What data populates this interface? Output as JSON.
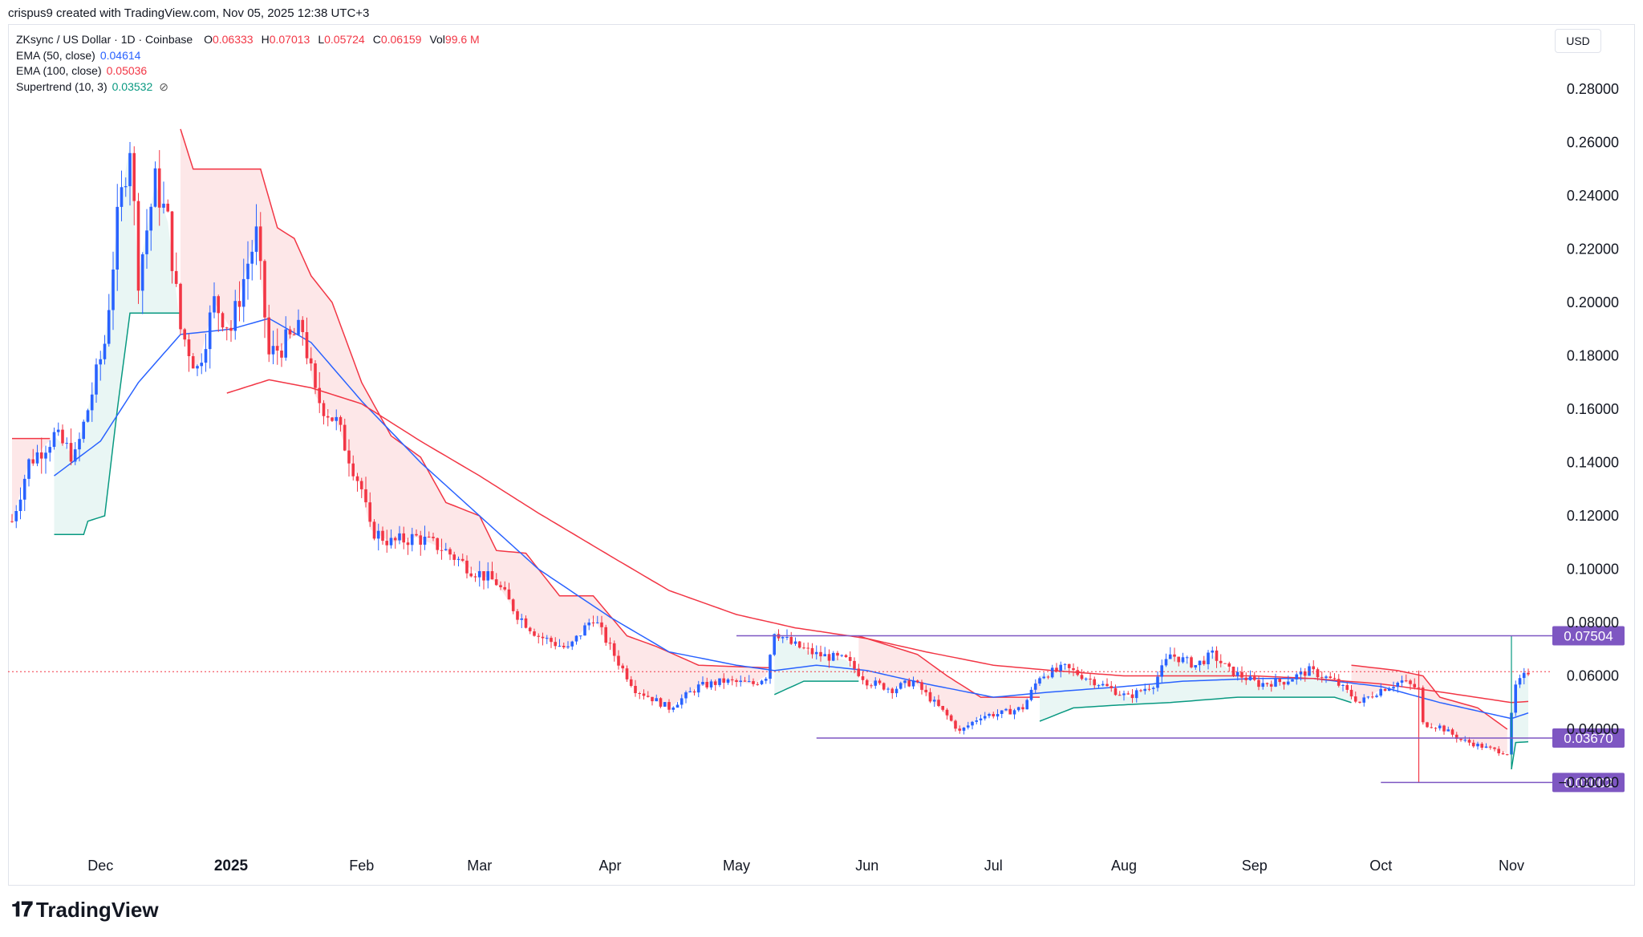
{
  "header": {
    "credit": "crispus9 created with TradingView.com, Nov 05, 2025 12:38 UTC+3"
  },
  "legend": {
    "symbol": "ZKsync / US Dollar · 1D · Coinbase",
    "ohlc": [
      {
        "label": "O",
        "value": "0.06333"
      },
      {
        "label": "H",
        "value": "0.07013"
      },
      {
        "label": "L",
        "value": "0.05724"
      },
      {
        "label": "C",
        "value": "0.06159"
      },
      {
        "label": "Vol",
        "value": "99.6 M"
      }
    ],
    "indicators": [
      {
        "label": "EMA (50, close)",
        "value": "0.04614",
        "color": "#2962ff"
      },
      {
        "label": "EMA (100, close)",
        "value": "0.05036",
        "color": "#f23645"
      },
      {
        "label": "Supertrend (10, 3)",
        "value": "0.03532",
        "color": "#089981"
      }
    ],
    "visibility_icon": "eye-off-icon"
  },
  "currency_badge": "USD",
  "footer": {
    "brand": "TradingView",
    "logo_icon": "tradingview-logo-icon"
  },
  "colors": {
    "up": "#2962ff",
    "down": "#f23645",
    "ema50": "#2962ff",
    "ema100": "#f23645",
    "supertrend_up": "#089981",
    "supertrend_down": "#f23645",
    "level_line": "#7e57c2",
    "level_badge": "#7e57c2",
    "last_price_line": "#f23645"
  },
  "chart_data": {
    "type": "candlestick",
    "title": "ZKsync / US Dollar · 1D · Coinbase",
    "ylim": [
      -0.002,
      0.288
    ],
    "y_ticks": [
      "0.28000",
      "0.26000",
      "0.24000",
      "0.22000",
      "0.20000",
      "0.18000",
      "0.16000",
      "0.14000",
      "0.12000",
      "0.10000",
      "0.08000",
      "0.06000",
      "0.04000",
      "−0.00000"
    ],
    "x_ticks": [
      {
        "label": "Dec",
        "date": "2024-12-01"
      },
      {
        "label": "2025",
        "date": "2025-01-01",
        "bold": true
      },
      {
        "label": "Feb",
        "date": "2025-02-01"
      },
      {
        "label": "Mar",
        "date": "2025-03-01"
      },
      {
        "label": "Apr",
        "date": "2025-04-01"
      },
      {
        "label": "May",
        "date": "2025-05-01"
      },
      {
        "label": "Jun",
        "date": "2025-06-01"
      },
      {
        "label": "Jul",
        "date": "2025-07-01"
      },
      {
        "label": "Aug",
        "date": "2025-08-01"
      },
      {
        "label": "Sep",
        "date": "2025-09-01"
      },
      {
        "label": "Oct",
        "date": "2025-10-01"
      },
      {
        "label": "Nov",
        "date": "2025-11-01"
      }
    ],
    "x_range": [
      "2024-11-10",
      "2025-11-05"
    ],
    "price_keypoints": [
      [
        "2024-11-10",
        0.118
      ],
      [
        "2024-11-14",
        0.14
      ],
      [
        "2024-11-20",
        0.15
      ],
      [
        "2024-11-25",
        0.142
      ],
      [
        "2024-11-28",
        0.16
      ],
      [
        "2024-12-02",
        0.185
      ],
      [
        "2024-12-05",
        0.23
      ],
      [
        "2024-12-08",
        0.26
      ],
      [
        "2024-12-10",
        0.21
      ],
      [
        "2024-12-14",
        0.245
      ],
      [
        "2024-12-17",
        0.23
      ],
      [
        "2024-12-20",
        0.19
      ],
      [
        "2024-12-24",
        0.175
      ],
      [
        "2024-12-28",
        0.2
      ],
      [
        "2025-01-01",
        0.19
      ],
      [
        "2025-01-05",
        0.215
      ],
      [
        "2025-01-07",
        0.225
      ],
      [
        "2025-01-10",
        0.18
      ],
      [
        "2025-01-14",
        0.185
      ],
      [
        "2025-01-18",
        0.19
      ],
      [
        "2025-01-21",
        0.165
      ],
      [
        "2025-01-26",
        0.155
      ],
      [
        "2025-02-01",
        0.13
      ],
      [
        "2025-02-03",
        0.115
      ],
      [
        "2025-02-08",
        0.11
      ],
      [
        "2025-02-14",
        0.112
      ],
      [
        "2025-02-20",
        0.108
      ],
      [
        "2025-02-27",
        0.1
      ],
      [
        "2025-03-05",
        0.095
      ],
      [
        "2025-03-10",
        0.083
      ],
      [
        "2025-03-15",
        0.075
      ],
      [
        "2025-03-22",
        0.07
      ],
      [
        "2025-03-28",
        0.082
      ],
      [
        "2025-04-03",
        0.065
      ],
      [
        "2025-04-07",
        0.055
      ],
      [
        "2025-04-15",
        0.048
      ],
      [
        "2025-04-22",
        0.056
      ],
      [
        "2025-04-28",
        0.058
      ],
      [
        "2025-05-05",
        0.057
      ],
      [
        "2025-05-08",
        0.06
      ],
      [
        "2025-05-10",
        0.077
      ],
      [
        "2025-05-14",
        0.072
      ],
      [
        "2025-05-20",
        0.068
      ],
      [
        "2025-05-27",
        0.066
      ],
      [
        "2025-06-01",
        0.058
      ],
      [
        "2025-06-07",
        0.055
      ],
      [
        "2025-06-12",
        0.058
      ],
      [
        "2025-06-20",
        0.045
      ],
      [
        "2025-06-23",
        0.039
      ],
      [
        "2025-06-28",
        0.045
      ],
      [
        "2025-07-03",
        0.046
      ],
      [
        "2025-07-08",
        0.048
      ],
      [
        "2025-07-12",
        0.06
      ],
      [
        "2025-07-18",
        0.063
      ],
      [
        "2025-07-25",
        0.058
      ],
      [
        "2025-08-02",
        0.052
      ],
      [
        "2025-08-08",
        0.057
      ],
      [
        "2025-08-12",
        0.068
      ],
      [
        "2025-08-18",
        0.064
      ],
      [
        "2025-08-22",
        0.068
      ],
      [
        "2025-08-26",
        0.062
      ],
      [
        "2025-09-02",
        0.057
      ],
      [
        "2025-09-08",
        0.058
      ],
      [
        "2025-09-14",
        0.062
      ],
      [
        "2025-09-20",
        0.058
      ],
      [
        "2025-09-26",
        0.05
      ],
      [
        "2025-10-01",
        0.055
      ],
      [
        "2025-10-06",
        0.058
      ],
      [
        "2025-10-10",
        0.055
      ],
      [
        "2025-10-11",
        0.042
      ],
      [
        "2025-10-15",
        0.041
      ],
      [
        "2025-10-20",
        0.036
      ],
      [
        "2025-10-26",
        0.033
      ],
      [
        "2025-10-31",
        0.031
      ],
      [
        "2025-11-01",
        0.045
      ],
      [
        "2025-11-02",
        0.056
      ],
      [
        "2025-11-05",
        0.0616
      ]
    ],
    "ema50_keypoints": [
      [
        "2024-11-20",
        0.135
      ],
      [
        "2024-12-01",
        0.148
      ],
      [
        "2024-12-10",
        0.17
      ],
      [
        "2024-12-20",
        0.188
      ],
      [
        "2025-01-01",
        0.19
      ],
      [
        "2025-01-10",
        0.194
      ],
      [
        "2025-01-20",
        0.185
      ],
      [
        "2025-02-01",
        0.163
      ],
      [
        "2025-02-15",
        0.14
      ],
      [
        "2025-03-01",
        0.12
      ],
      [
        "2025-03-15",
        0.1
      ],
      [
        "2025-04-01",
        0.082
      ],
      [
        "2025-04-15",
        0.069
      ],
      [
        "2025-05-01",
        0.064
      ],
      [
        "2025-05-10",
        0.062
      ],
      [
        "2025-05-20",
        0.064
      ],
      [
        "2025-06-01",
        0.062
      ],
      [
        "2025-06-15",
        0.057
      ],
      [
        "2025-07-01",
        0.052
      ],
      [
        "2025-07-15",
        0.054
      ],
      [
        "2025-08-01",
        0.056
      ],
      [
        "2025-08-15",
        0.058
      ],
      [
        "2025-09-01",
        0.059
      ],
      [
        "2025-09-15",
        0.059
      ],
      [
        "2025-10-01",
        0.056
      ],
      [
        "2025-10-15",
        0.05
      ],
      [
        "2025-11-01",
        0.044
      ],
      [
        "2025-11-05",
        0.0461
      ]
    ],
    "ema100_keypoints": [
      [
        "2024-12-31",
        0.166
      ],
      [
        "2025-01-10",
        0.171
      ],
      [
        "2025-01-20",
        0.168
      ],
      [
        "2025-02-01",
        0.162
      ],
      [
        "2025-02-15",
        0.148
      ],
      [
        "2025-03-01",
        0.135
      ],
      [
        "2025-03-15",
        0.121
      ],
      [
        "2025-04-01",
        0.105
      ],
      [
        "2025-04-15",
        0.092
      ],
      [
        "2025-05-01",
        0.083
      ],
      [
        "2025-05-15",
        0.078
      ],
      [
        "2025-06-01",
        0.074
      ],
      [
        "2025-06-15",
        0.069
      ],
      [
        "2025-07-01",
        0.064
      ],
      [
        "2025-07-15",
        0.062
      ],
      [
        "2025-08-01",
        0.06
      ],
      [
        "2025-08-15",
        0.06
      ],
      [
        "2025-09-01",
        0.06
      ],
      [
        "2025-09-15",
        0.059
      ],
      [
        "2025-10-01",
        0.057
      ],
      [
        "2025-10-15",
        0.054
      ],
      [
        "2025-11-01",
        0.05
      ],
      [
        "2025-11-05",
        0.0504
      ]
    ],
    "supertrend_segments": [
      {
        "dir": "down",
        "points": [
          [
            "2024-11-10",
            0.149
          ],
          [
            "2024-11-19",
            0.149
          ]
        ]
      },
      {
        "dir": "up",
        "points": [
          [
            "2024-11-20",
            0.113
          ],
          [
            "2024-11-27",
            0.113
          ],
          [
            "2024-11-28",
            0.118
          ],
          [
            "2024-12-02",
            0.12
          ],
          [
            "2024-12-05",
            0.16
          ],
          [
            "2024-12-08",
            0.196
          ],
          [
            "2024-12-20",
            0.196
          ]
        ]
      },
      {
        "dir": "down",
        "points": [
          [
            "2024-12-20",
            0.265
          ],
          [
            "2024-12-23",
            0.25
          ],
          [
            "2025-01-08",
            0.25
          ],
          [
            "2025-01-12",
            0.228
          ],
          [
            "2025-01-16",
            0.224
          ],
          [
            "2025-01-20",
            0.21
          ],
          [
            "2025-01-25",
            0.2
          ],
          [
            "2025-02-01",
            0.17
          ],
          [
            "2025-02-08",
            0.15
          ],
          [
            "2025-02-15",
            0.142
          ],
          [
            "2025-02-21",
            0.125
          ],
          [
            "2025-03-01",
            0.12
          ],
          [
            "2025-03-05",
            0.107
          ],
          [
            "2025-03-12",
            0.106
          ],
          [
            "2025-03-20",
            0.09
          ],
          [
            "2025-03-28",
            0.09
          ],
          [
            "2025-04-05",
            0.075
          ],
          [
            "2025-04-12",
            0.071
          ],
          [
            "2025-04-22",
            0.064
          ],
          [
            "2025-05-09",
            0.063
          ]
        ]
      },
      {
        "dir": "up",
        "points": [
          [
            "2025-05-10",
            0.053
          ],
          [
            "2025-05-17",
            0.058
          ],
          [
            "2025-05-30",
            0.058
          ]
        ]
      },
      {
        "dir": "down",
        "points": [
          [
            "2025-05-30",
            0.075
          ],
          [
            "2025-06-05",
            0.072
          ],
          [
            "2025-06-13",
            0.068
          ],
          [
            "2025-06-20",
            0.06
          ],
          [
            "2025-06-28",
            0.052
          ],
          [
            "2025-07-12",
            0.052
          ]
        ]
      },
      {
        "dir": "up",
        "points": [
          [
            "2025-07-12",
            0.043
          ],
          [
            "2025-07-20",
            0.048
          ],
          [
            "2025-07-30",
            0.049
          ],
          [
            "2025-08-12",
            0.05
          ],
          [
            "2025-08-28",
            0.052
          ],
          [
            "2025-09-20",
            0.052
          ],
          [
            "2025-09-24",
            0.05
          ]
        ]
      },
      {
        "dir": "down",
        "points": [
          [
            "2025-09-24",
            0.064
          ],
          [
            "2025-10-05",
            0.062
          ],
          [
            "2025-10-11",
            0.06
          ],
          [
            "2025-10-15",
            0.052
          ],
          [
            "2025-10-24",
            0.048
          ],
          [
            "2025-10-31",
            0.04
          ]
        ]
      },
      {
        "dir": "up",
        "points": [
          [
            "2025-11-01",
            0.025
          ],
          [
            "2025-11-02",
            0.035
          ],
          [
            "2025-11-05",
            0.0353
          ]
        ]
      }
    ],
    "levels": [
      {
        "value": 0.07504,
        "label": "0.07504",
        "from": "2025-05-01"
      },
      {
        "value": 0.0367,
        "label": "0.03670",
        "from": "2025-05-20"
      },
      {
        "value": 0.02002,
        "label": "0.02002",
        "from": "2025-10-01"
      }
    ],
    "last_price": 0.06159
  }
}
